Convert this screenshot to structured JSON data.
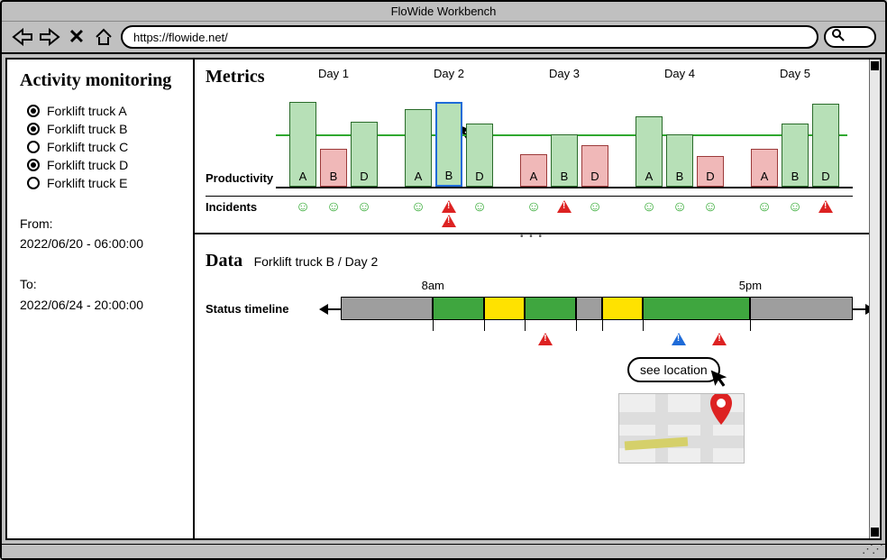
{
  "window": {
    "title": "FloWide Workbench",
    "url": "https://flowide.net/"
  },
  "sidebar": {
    "heading": "Activity monitoring",
    "trucks": [
      {
        "label": "Forklift truck A",
        "checked": true
      },
      {
        "label": "Forklift truck B",
        "checked": true
      },
      {
        "label": "Forklift truck C",
        "checked": false
      },
      {
        "label": "Forklift truck D",
        "checked": true
      },
      {
        "label": "Forklift truck E",
        "checked": false
      }
    ],
    "from_label": "From:",
    "from_value": "2022/06/20 - 06:00:00",
    "to_label": "To:",
    "to_value": "2022/06/24 - 20:00:00"
  },
  "metrics": {
    "heading": "Metrics",
    "row_productivity": "Productivity",
    "row_incidents": "Incidents",
    "threshold_color": "#2fa82f",
    "bar_colors": {
      "ok": "#b7e0b7",
      "bad": "#f0b8b8",
      "highlight_border": "#1e6bd8"
    },
    "days": [
      {
        "label": "Day 1",
        "bars": [
          {
            "truck": "A",
            "value": 94,
            "status": "ok",
            "incidents": [
              "smile"
            ]
          },
          {
            "truck": "B",
            "value": 42,
            "status": "bad",
            "incidents": [
              "smile"
            ]
          },
          {
            "truck": "D",
            "value": 72,
            "status": "ok",
            "incidents": [
              "smile"
            ]
          }
        ]
      },
      {
        "label": "Day 2",
        "bars": [
          {
            "truck": "A",
            "value": 86,
            "status": "ok",
            "incidents": [
              "smile"
            ]
          },
          {
            "truck": "B",
            "value": 94,
            "status": "ok",
            "highlight": true,
            "incidents": [
              "warn",
              "warn"
            ]
          },
          {
            "truck": "D",
            "value": 70,
            "status": "ok",
            "incidents": [
              "smile"
            ]
          }
        ]
      },
      {
        "label": "Day 3",
        "bars": [
          {
            "truck": "A",
            "value": 36,
            "status": "bad",
            "incidents": [
              "smile"
            ]
          },
          {
            "truck": "B",
            "value": 58,
            "status": "ok",
            "incidents": [
              "warn"
            ]
          },
          {
            "truck": "D",
            "value": 46,
            "status": "bad",
            "incidents": [
              "smile"
            ]
          }
        ]
      },
      {
        "label": "Day 4",
        "bars": [
          {
            "truck": "A",
            "value": 78,
            "status": "ok",
            "incidents": [
              "smile"
            ]
          },
          {
            "truck": "B",
            "value": 58,
            "status": "ok",
            "incidents": [
              "smile"
            ]
          },
          {
            "truck": "D",
            "value": 34,
            "status": "bad",
            "incidents": [
              "smile"
            ]
          }
        ]
      },
      {
        "label": "Day 5",
        "bars": [
          {
            "truck": "A",
            "value": 42,
            "status": "bad",
            "incidents": [
              "smile"
            ]
          },
          {
            "truck": "B",
            "value": 70,
            "status": "ok",
            "incidents": [
              "smile"
            ]
          },
          {
            "truck": "D",
            "value": 92,
            "status": "ok",
            "incidents": [
              "warn"
            ]
          }
        ]
      }
    ]
  },
  "data_panel": {
    "heading": "Data",
    "subtitle": "Forklift truck B / Day 2",
    "timeline_label": "Status timeline",
    "hours_label_start": "8am",
    "hours_label_end": "5pm",
    "colors": {
      "idle": "#9e9e9e",
      "active": "#3fa63f",
      "pause": "#ffe200"
    },
    "segments": [
      {
        "status": "idle",
        "start": 0,
        "width": 18
      },
      {
        "status": "active",
        "start": 18,
        "width": 10
      },
      {
        "status": "pause",
        "start": 28,
        "width": 8
      },
      {
        "status": "active",
        "start": 36,
        "width": 10
      },
      {
        "status": "idle",
        "start": 46,
        "width": 5
      },
      {
        "status": "pause",
        "start": 51,
        "width": 8
      },
      {
        "status": "active",
        "start": 59,
        "width": 21
      },
      {
        "status": "idle",
        "start": 80,
        "width": 20
      }
    ],
    "markers": [
      {
        "pos": 40,
        "type": "warn"
      },
      {
        "pos": 66,
        "type": "warn-blue"
      },
      {
        "pos": 74,
        "type": "warn"
      }
    ],
    "tick_start_pos": 18,
    "tick_end_pos": 80,
    "tooltip_text": "see location"
  }
}
